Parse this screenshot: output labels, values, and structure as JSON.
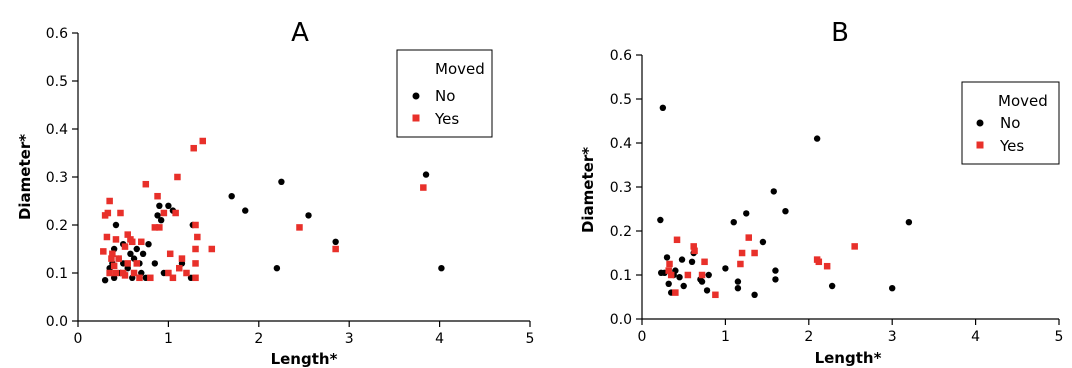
{
  "chart_data": [
    {
      "type": "scatter",
      "title": "A",
      "xlabel": "Length*",
      "ylabel": "Diameter*",
      "xlim": [
        0,
        5
      ],
      "ylim": [
        0,
        0.6
      ],
      "xticks": [
        "0",
        "1",
        "2",
        "3",
        "4",
        "5"
      ],
      "yticks": [
        "0.0",
        "0.1",
        "0.2",
        "0.3",
        "0.4",
        "0.5",
        "0.6"
      ],
      "grid": false,
      "legend": {
        "title": "Moved",
        "position": "top-right"
      },
      "series": [
        {
          "name": "No",
          "color": "#000000",
          "marker": "circle",
          "points": [
            [
              0.3,
              0.085
            ],
            [
              0.35,
              0.11
            ],
            [
              0.38,
              0.12
            ],
            [
              0.4,
              0.09
            ],
            [
              0.4,
              0.15
            ],
            [
              0.42,
              0.2
            ],
            [
              0.45,
              0.13
            ],
            [
              0.47,
              0.1
            ],
            [
              0.5,
              0.16
            ],
            [
              0.5,
              0.12
            ],
            [
              0.55,
              0.11
            ],
            [
              0.58,
              0.14
            ],
            [
              0.6,
              0.09
            ],
            [
              0.62,
              0.13
            ],
            [
              0.65,
              0.15
            ],
            [
              0.68,
              0.12
            ],
            [
              0.7,
              0.1
            ],
            [
              0.72,
              0.14
            ],
            [
              0.75,
              0.09
            ],
            [
              0.78,
              0.16
            ],
            [
              0.85,
              0.12
            ],
            [
              0.88,
              0.22
            ],
            [
              0.9,
              0.24
            ],
            [
              0.92,
              0.21
            ],
            [
              0.95,
              0.1
            ],
            [
              1.0,
              0.24
            ],
            [
              1.05,
              0.23
            ],
            [
              1.15,
              0.12
            ],
            [
              1.25,
              0.09
            ],
            [
              1.27,
              0.2
            ],
            [
              1.7,
              0.26
            ],
            [
              1.85,
              0.23
            ],
            [
              2.2,
              0.11
            ],
            [
              2.25,
              0.29
            ],
            [
              2.55,
              0.22
            ],
            [
              2.85,
              0.165
            ],
            [
              3.85,
              0.305
            ],
            [
              4.02,
              0.11
            ]
          ]
        },
        {
          "name": "Yes",
          "color": "#e8302a",
          "marker": "square",
          "points": [
            [
              0.28,
              0.145
            ],
            [
              0.3,
              0.22
            ],
            [
              0.32,
              0.175
            ],
            [
              0.33,
              0.225
            ],
            [
              0.35,
              0.25
            ],
            [
              0.35,
              0.1
            ],
            [
              0.37,
              0.13
            ],
            [
              0.38,
              0.14
            ],
            [
              0.4,
              0.115
            ],
            [
              0.42,
              0.17
            ],
            [
              0.42,
              0.1
            ],
            [
              0.45,
              0.13
            ],
            [
              0.47,
              0.225
            ],
            [
              0.5,
              0.1
            ],
            [
              0.52,
              0.155
            ],
            [
              0.52,
              0.095
            ],
            [
              0.55,
              0.18
            ],
            [
              0.55,
              0.12
            ],
            [
              0.58,
              0.17
            ],
            [
              0.6,
              0.165
            ],
            [
              0.62,
              0.1
            ],
            [
              0.65,
              0.12
            ],
            [
              0.68,
              0.09
            ],
            [
              0.7,
              0.165
            ],
            [
              0.75,
              0.285
            ],
            [
              0.8,
              0.09
            ],
            [
              0.85,
              0.195
            ],
            [
              0.88,
              0.26
            ],
            [
              0.9,
              0.195
            ],
            [
              0.95,
              0.225
            ],
            [
              1.0,
              0.1
            ],
            [
              1.02,
              0.14
            ],
            [
              1.05,
              0.09
            ],
            [
              1.08,
              0.225
            ],
            [
              1.1,
              0.3
            ],
            [
              1.12,
              0.11
            ],
            [
              1.15,
              0.13
            ],
            [
              1.2,
              0.1
            ],
            [
              1.28,
              0.36
            ],
            [
              1.3,
              0.2
            ],
            [
              1.3,
              0.09
            ],
            [
              1.3,
              0.12
            ],
            [
              1.3,
              0.15
            ],
            [
              1.32,
              0.175
            ],
            [
              1.38,
              0.375
            ],
            [
              1.48,
              0.15
            ],
            [
              2.45,
              0.195
            ],
            [
              2.85,
              0.15
            ],
            [
              3.82,
              0.278
            ]
          ]
        }
      ]
    },
    {
      "type": "scatter",
      "title": "B",
      "xlabel": "Length*",
      "ylabel": "Diameter*",
      "xlim": [
        0,
        5
      ],
      "ylim": [
        0,
        0.6
      ],
      "xticks": [
        "0",
        "1",
        "2",
        "3",
        "4",
        "5"
      ],
      "yticks": [
        "0.0",
        "0.1",
        "0.2",
        "0.3",
        "0.4",
        "0.5",
        "0.6"
      ],
      "grid": false,
      "legend": {
        "title": "Moved",
        "position": "top-right"
      },
      "series": [
        {
          "name": "No",
          "color": "#000000",
          "marker": "circle",
          "points": [
            [
              0.22,
              0.225
            ],
            [
              0.23,
              0.105
            ],
            [
              0.25,
              0.48
            ],
            [
              0.27,
              0.105
            ],
            [
              0.3,
              0.14
            ],
            [
              0.32,
              0.08
            ],
            [
              0.35,
              0.06
            ],
            [
              0.38,
              0.1
            ],
            [
              0.4,
              0.11
            ],
            [
              0.45,
              0.095
            ],
            [
              0.48,
              0.135
            ],
            [
              0.5,
              0.075
            ],
            [
              0.6,
              0.13
            ],
            [
              0.62,
              0.15
            ],
            [
              0.7,
              0.09
            ],
            [
              0.72,
              0.085
            ],
            [
              0.78,
              0.065
            ],
            [
              0.8,
              0.1
            ],
            [
              1.0,
              0.115
            ],
            [
              1.1,
              0.22
            ],
            [
              1.15,
              0.07
            ],
            [
              1.15,
              0.085
            ],
            [
              1.25,
              0.24
            ],
            [
              1.35,
              0.055
            ],
            [
              1.45,
              0.175
            ],
            [
              1.58,
              0.29
            ],
            [
              1.6,
              0.09
            ],
            [
              1.6,
              0.11
            ],
            [
              1.72,
              0.245
            ],
            [
              2.1,
              0.41
            ],
            [
              2.28,
              0.075
            ],
            [
              3.0,
              0.07
            ],
            [
              3.2,
              0.22
            ]
          ]
        },
        {
          "name": "Yes",
          "color": "#e8302a",
          "marker": "square",
          "points": [
            [
              0.32,
              0.11
            ],
            [
              0.33,
              0.125
            ],
            [
              0.35,
              0.1
            ],
            [
              0.4,
              0.06
            ],
            [
              0.42,
              0.18
            ],
            [
              0.55,
              0.1
            ],
            [
              0.62,
              0.165
            ],
            [
              0.63,
              0.155
            ],
            [
              0.72,
              0.1
            ],
            [
              0.75,
              0.13
            ],
            [
              0.88,
              0.055
            ],
            [
              1.18,
              0.125
            ],
            [
              1.2,
              0.15
            ],
            [
              1.28,
              0.185
            ],
            [
              1.35,
              0.15
            ],
            [
              2.1,
              0.135
            ],
            [
              2.12,
              0.13
            ],
            [
              2.22,
              0.12
            ],
            [
              2.55,
              0.165
            ]
          ]
        }
      ]
    }
  ]
}
